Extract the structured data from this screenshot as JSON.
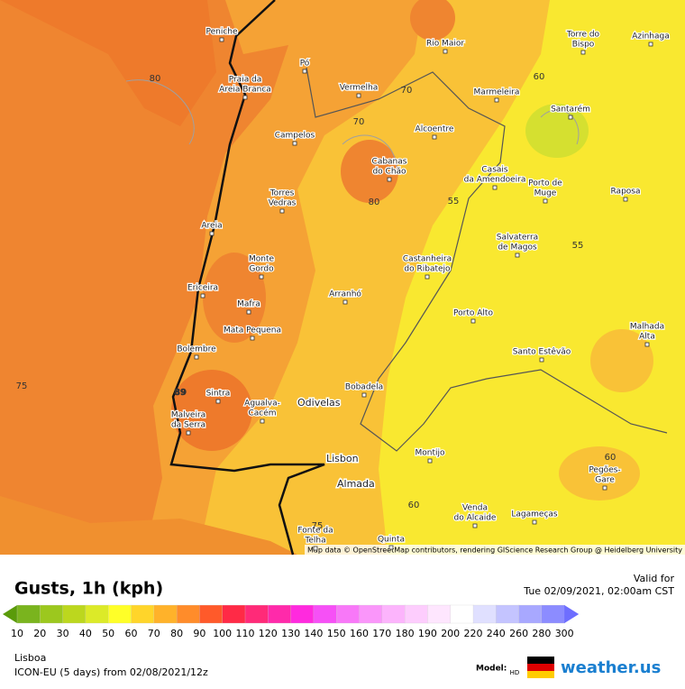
{
  "map": {
    "places": [
      [
        "Peniche"
      ],
      [
        "Rio Maior"
      ],
      [
        "Torre do",
        "Bispo"
      ],
      [
        "Azinhaga"
      ],
      [
        "Praia da",
        "Areia Branca"
      ],
      [
        "Pó"
      ],
      [
        "Vermelha"
      ],
      [
        "Marmeleira"
      ],
      [
        "Santarém"
      ],
      [
        "Campelos"
      ],
      [
        "Alcoentre"
      ],
      [
        "Cabanas",
        "do Chão"
      ],
      [
        "Casais",
        "da Amendoeira"
      ],
      [
        "Porto de",
        "Muge"
      ],
      [
        "Raposa"
      ],
      [
        "Torres",
        "Vedras"
      ],
      [
        "Areia"
      ],
      [
        "Salvaterra",
        "de Magos"
      ],
      [
        "Castanheira",
        "do Ribatejo"
      ],
      [
        "Monte",
        "Gordo"
      ],
      [
        "Ericeira"
      ],
      [
        "Arranhó"
      ],
      [
        "Mafra"
      ],
      [
        "Porto Alto"
      ],
      [
        "Mata Pequena"
      ],
      [
        "Malhada",
        "Alta"
      ],
      [
        "Bolembre"
      ],
      [
        "Santo Estêvão"
      ],
      [
        "Bobadela"
      ],
      [
        "Sintra"
      ],
      [
        "Agualva-",
        "Cacém"
      ],
      [
        "Malveira",
        "da Serra"
      ],
      [
        "Montijo"
      ],
      [
        "Pegões-",
        "Gare"
      ],
      [
        "Venda",
        "do Alcaide"
      ],
      [
        "Lagameças"
      ],
      [
        "Fonte da",
        "Telha"
      ],
      [
        "Quinta"
      ]
    ],
    "major_places": [
      "Odivelas",
      "Lisbon",
      "Almada"
    ],
    "contour_labels": [
      80,
      70,
      70,
      60,
      80,
      55,
      55,
      89,
      75,
      60,
      60,
      75
    ],
    "attribution": "Map data © OpenStreetMap contributors, rendering GIScience Research Group @ Heidelberg University"
  },
  "footer": {
    "title": "Gusts, 1h (kph)",
    "valid_label": "Valid for",
    "valid_time": "Tue 02/09/2021, 02:00am CST",
    "location": "Lisboa",
    "model_run": "ICON-EU (5 days) from 02/08/2021/12z",
    "model_label": "Model:",
    "hd": "HD",
    "brand": "weather.us"
  },
  "legend": {
    "ticks": [
      10,
      20,
      30,
      40,
      50,
      60,
      70,
      80,
      90,
      100,
      110,
      120,
      130,
      140,
      150,
      160,
      170,
      180,
      190,
      200,
      220,
      240,
      260,
      280,
      300
    ],
    "colors": [
      "#7ab41e",
      "#9cc81e",
      "#bcd71e",
      "#dcea28",
      "#ffff28",
      "#ffd52a",
      "#ffb22a",
      "#ff8c2a",
      "#ff5a2a",
      "#ff2a46",
      "#ff2a78",
      "#ff2aaa",
      "#ff2ade",
      "#f650f6",
      "#f878f8",
      "#fa96fa",
      "#fcb4fc",
      "#fdcdfd",
      "#fee6fe",
      "#ffffff",
      "#e0e0ff",
      "#c4c4ff",
      "#a8a8ff",
      "#8c8cff"
    ],
    "low_color": "#5a9b0a",
    "high_color": "#6e6eff"
  }
}
